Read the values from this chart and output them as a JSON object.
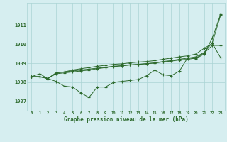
{
  "title": "Graphe pression niveau de la mer (hPa)",
  "hours": [
    0,
    1,
    2,
    3,
    4,
    5,
    6,
    7,
    8,
    9,
    10,
    11,
    12,
    13,
    14,
    15,
    16,
    17,
    18,
    19,
    20,
    21,
    22,
    23
  ],
  "series": [
    [
      1008.3,
      1008.45,
      1008.2,
      1008.05,
      1007.8,
      1007.75,
      1007.45,
      1007.2,
      1007.75,
      1007.75,
      1008.0,
      1008.05,
      1008.1,
      1008.15,
      1008.35,
      1008.65,
      1008.4,
      1008.35,
      1008.6,
      1009.3,
      1009.25,
      1009.5,
      1010.35,
      1011.6
    ],
    [
      1008.3,
      1008.3,
      1008.2,
      1008.5,
      1008.55,
      1008.6,
      1008.65,
      1008.7,
      1008.75,
      1008.8,
      1008.85,
      1008.88,
      1008.92,
      1008.95,
      1008.98,
      1009.02,
      1009.08,
      1009.12,
      1009.18,
      1009.22,
      1009.28,
      1009.55,
      1009.95,
      1009.95
    ],
    [
      1008.3,
      1008.3,
      1008.2,
      1008.5,
      1008.55,
      1008.65,
      1008.72,
      1008.78,
      1008.85,
      1008.9,
      1008.95,
      1008.98,
      1009.03,
      1009.07,
      1009.1,
      1009.15,
      1009.22,
      1009.28,
      1009.35,
      1009.4,
      1009.5,
      1009.8,
      1010.05,
      1009.3
    ],
    [
      1008.3,
      1008.3,
      1008.2,
      1008.45,
      1008.5,
      1008.55,
      1008.6,
      1008.65,
      1008.72,
      1008.78,
      1008.83,
      1008.87,
      1008.92,
      1008.95,
      1008.99,
      1009.03,
      1009.1,
      1009.15,
      1009.22,
      1009.28,
      1009.35,
      1009.58,
      1010.1,
      1011.55
    ]
  ],
  "line_color": "#2d6a2d",
  "marker_color": "#2d6a2d",
  "background_color": "#d6eef0",
  "grid_color": "#aad4d4",
  "axis_label_color": "#2d6a2d",
  "ylim": [
    1006.5,
    1012.2
  ],
  "yticks": [
    1007,
    1008,
    1009,
    1010,
    1011
  ],
  "xticks": [
    0,
    1,
    2,
    3,
    4,
    5,
    6,
    7,
    8,
    9,
    10,
    11,
    12,
    13,
    14,
    15,
    16,
    17,
    18,
    19,
    20,
    21,
    22,
    23
  ]
}
